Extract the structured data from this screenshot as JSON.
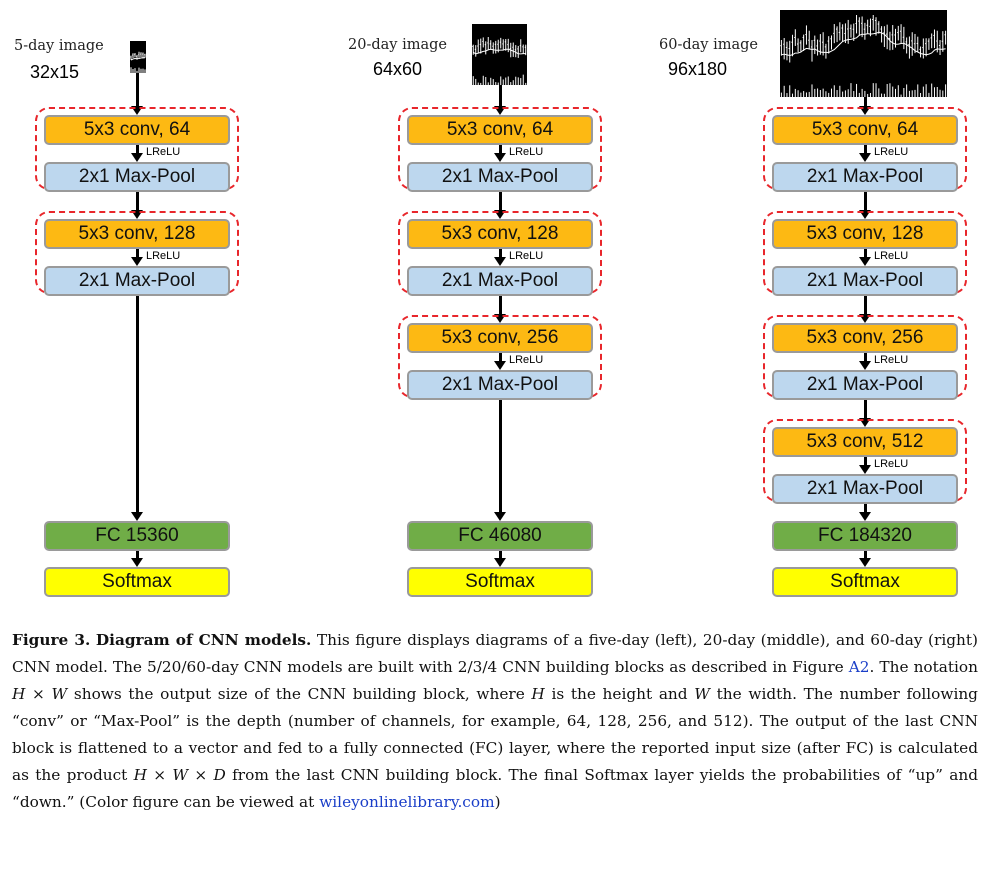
{
  "models": [
    {
      "image_label": "5-day image",
      "image_size": "32x15",
      "blocks": [
        {
          "conv": "5x3 conv, 64",
          "act": "LReLU",
          "pool": "2x1 Max-Pool"
        },
        {
          "conv": "5x3 conv, 128",
          "act": "LReLU",
          "pool": "2x1 Max-Pool"
        }
      ],
      "fc": "FC 15360",
      "softmax": "Softmax"
    },
    {
      "image_label": "20-day image",
      "image_size": "64x60",
      "blocks": [
        {
          "conv": "5x3 conv, 64",
          "act": "LReLU",
          "pool": "2x1 Max-Pool"
        },
        {
          "conv": "5x3 conv, 128",
          "act": "LReLU",
          "pool": "2x1 Max-Pool"
        },
        {
          "conv": "5x3 conv, 256",
          "act": "LReLU",
          "pool": "2x1 Max-Pool"
        }
      ],
      "fc": "FC 46080",
      "softmax": "Softmax"
    },
    {
      "image_label": "60-day image",
      "image_size": "96x180",
      "blocks": [
        {
          "conv": "5x3 conv, 64",
          "act": "LReLU",
          "pool": "2x1 Max-Pool"
        },
        {
          "conv": "5x3 conv, 128",
          "act": "LReLU",
          "pool": "2x1 Max-Pool"
        },
        {
          "conv": "5x3 conv, 256",
          "act": "LReLU",
          "pool": "2x1 Max-Pool"
        },
        {
          "conv": "5x3 conv, 512",
          "act": "LReLU",
          "pool": "2x1 Max-Pool"
        }
      ],
      "fc": "FC 184320",
      "softmax": "Softmax"
    }
  ],
  "caption": {
    "label": "Figure 3.",
    "title": "Diagram of CNN models.",
    "p1": "This figure displays diagrams of a five-day (left), 20-day (middle), and 60-day (right) CNN model. The 5/20/60-day CNN models are built with 2/3/4 CNN building blocks as described in Figure",
    "fig_link": "A2",
    "p2": ". The notation",
    "hw": "H × W",
    "p3": "shows the output size of the CNN building block, where",
    "h": "H",
    "p4": "is the height and",
    "w": "W",
    "p5": "the width. The number following “conv” or “Max-Pool” is the depth (number of channels, for example, 64, 128, 256, and 512). The output of the last CNN block is flattened to a vector and fed to a fully connected (FC) layer, where the reported input size (after FC) is calculated as the product",
    "hwd": "H × W × D",
    "p6": "from the last CNN building block. The final Softmax layer yields the probabilities of “up” and “down.” (Color figure can be viewed at",
    "site_link": "wileyonlinelibrary.com",
    "p7": ")"
  }
}
